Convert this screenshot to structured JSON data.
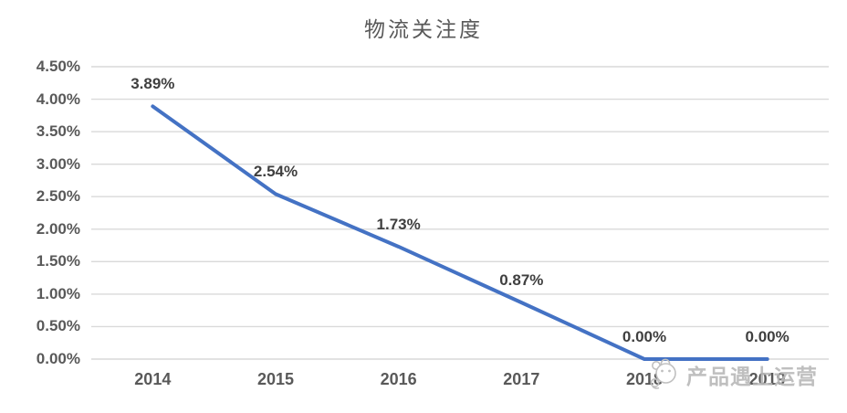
{
  "watermark": {
    "text": "产品遇上运营",
    "icon": "panda-face-icon"
  },
  "chart_data": {
    "type": "line",
    "title": "物流关注度",
    "categories": [
      "2014",
      "2015",
      "2016",
      "2017",
      "2018",
      "2019"
    ],
    "values": [
      3.89,
      2.54,
      1.73,
      0.87,
      0.0,
      0.0
    ],
    "data_labels": [
      "3.89%",
      "2.54%",
      "1.73%",
      "0.87%",
      "0.00%",
      "0.00%"
    ],
    "y_ticks": [
      "4.50%",
      "4.00%",
      "3.50%",
      "3.00%",
      "2.50%",
      "2.00%",
      "1.50%",
      "1.00%",
      "0.50%",
      "0.00%"
    ],
    "xlabel": "",
    "ylabel": "",
    "ylim": [
      0,
      4.5
    ],
    "y_tick_step": 0.5,
    "grid": true,
    "legend": "none",
    "colors": {
      "line": "#4472C4",
      "gridline": "#D9D9D9",
      "axis_text": "#595959",
      "data_label": "#3f3f3f",
      "title": "#595959"
    }
  }
}
